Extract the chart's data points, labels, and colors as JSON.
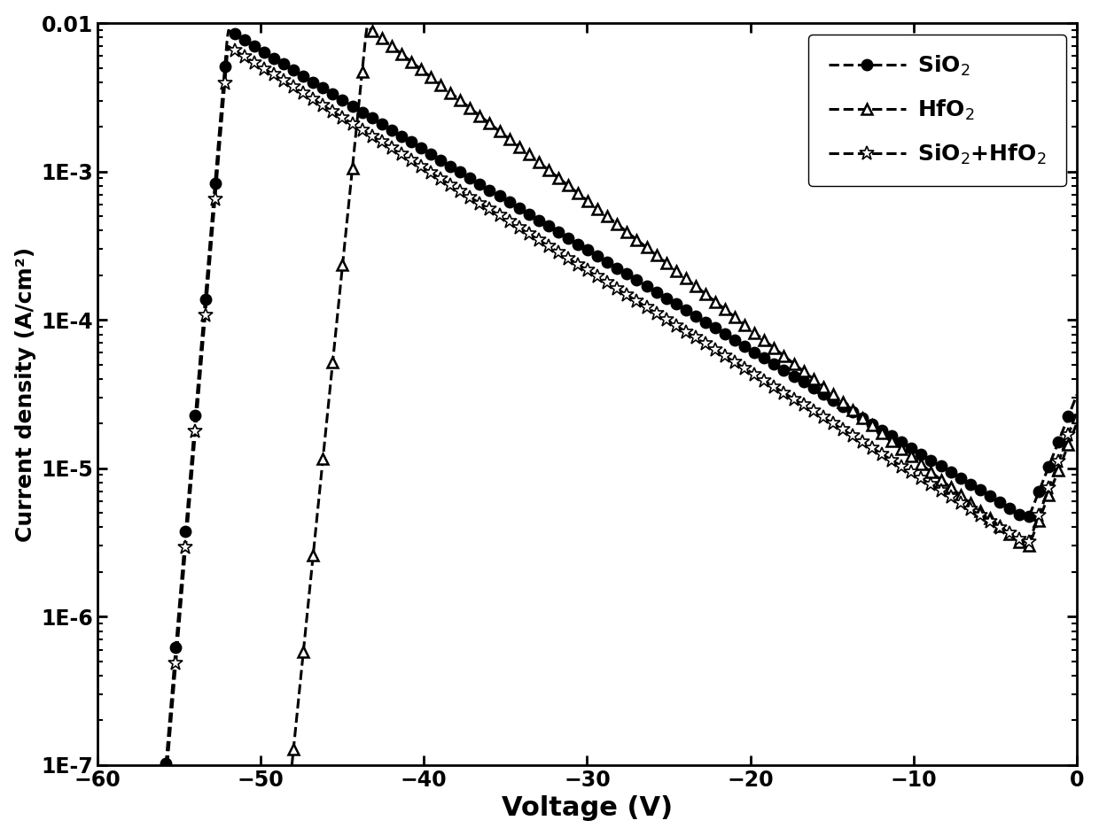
{
  "xlabel": "Voltage (V)",
  "ylabel": "Current density (A/cm²)",
  "xlim": [
    -60,
    0
  ],
  "ylim": [
    1e-07,
    0.01
  ],
  "xticks": [
    -60,
    -50,
    -40,
    -30,
    -20,
    -10,
    0
  ],
  "ytick_values": [
    1e-07,
    1e-06,
    1e-05,
    0.0001,
    0.001,
    0.01
  ],
  "ytick_labels": [
    "1E-7",
    "1E-6",
    "1E-5",
    "1E-4",
    "1E-3",
    "0.01"
  ],
  "line_color": "#000000",
  "linewidth": 2.2,
  "markersize_circle": 9,
  "markersize_tri": 9,
  "markersize_star": 12,
  "xlabel_fontsize": 22,
  "ylabel_fontsize": 18,
  "tick_fontsize": 17,
  "legend_fontsize": 18,
  "figsize": [
    12.4,
    9.44
  ],
  "dpi": 100,
  "n_points": 800,
  "markers_per_unit": 1.0
}
